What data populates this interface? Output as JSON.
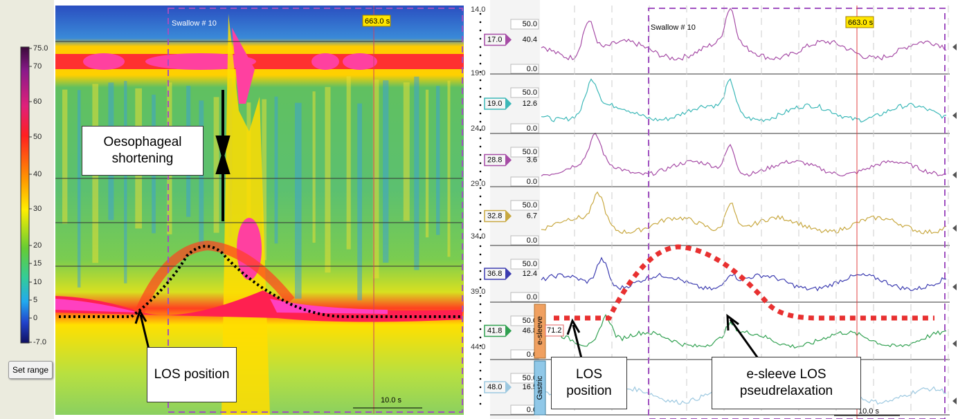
{
  "colorbar": {
    "labels": [
      "75.0",
      "70",
      "60",
      "50",
      "40",
      "30",
      "20",
      "15",
      "10",
      "5",
      "0",
      "-7.0"
    ]
  },
  "set_range_button": "Set range",
  "topography": {
    "swallow_label": "Swallow # 10",
    "time_marker": "663.0 s",
    "scale_label": "10.0 s",
    "annotations": [
      "Oesophageal shortening",
      "LOS position"
    ]
  },
  "sensor_positions": [
    "14.0",
    "19.0",
    "24.0",
    "29.0",
    "34.0",
    "39.0",
    "44.0"
  ],
  "channels": [
    {
      "position": "17.0",
      "value": "40.4",
      "scale_max": "50.0",
      "scale_min": "0.0",
      "color": "#a64ca6"
    },
    {
      "position": "19.0",
      "value": "12.6",
      "scale_max": "50.0",
      "scale_min": "0.0",
      "color": "#3cb8b8"
    },
    {
      "position": "28.8",
      "value": "3.6",
      "scale_max": "50.0",
      "scale_min": "0.0",
      "color": "#a64ca6"
    },
    {
      "position": "32.8",
      "value": "6.7",
      "scale_max": "50.0",
      "scale_min": "0.0",
      "color": "#c8a840"
    },
    {
      "position": "36.8",
      "value": "12.4",
      "scale_max": "50.0",
      "scale_min": "0.0",
      "color": "#3c3cb0"
    },
    {
      "position": "41.8",
      "value": "46.8",
      "scale_max": "50.0",
      "scale_min": "0.0",
      "color": "#30a050"
    },
    {
      "position": "48.0",
      "value": "16.5",
      "scale_max": "50.0",
      "scale_min": "0.0",
      "color": "#9cc8e0"
    }
  ],
  "e_sleeve": {
    "label": "e-sleeve",
    "value": "71.2"
  },
  "gastric_label": "Gastric",
  "line_plots": {
    "swallow_label": "Swallow # 10",
    "time_marker": "663.0 s",
    "scale_label": "10.0 s",
    "annotations": [
      "LOS position",
      "e-sleeve LOS pseudrelaxation"
    ]
  }
}
